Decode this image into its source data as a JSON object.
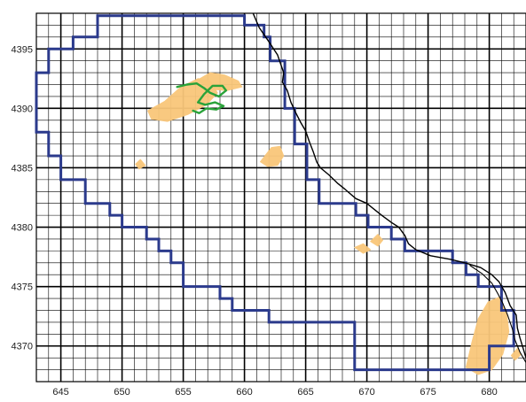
{
  "map": {
    "axes": {
      "x_range": [
        643,
        683
      ],
      "y_range": [
        4367,
        4398
      ],
      "x_tick_values": [
        645,
        650,
        655,
        660,
        665,
        670,
        675,
        680
      ],
      "x_tick_labels": [
        "645",
        "650",
        "655",
        "660",
        "665",
        "670",
        "675",
        "680"
      ],
      "y_tick_values": [
        4370,
        4375,
        4380,
        4385,
        4390,
        4395
      ],
      "y_tick_labels": [
        "4370",
        "4375",
        "4380",
        "4385",
        "4390",
        "4395"
      ],
      "minor_grid_step": 1,
      "major_grid_step": 5,
      "grid": true
    },
    "colors": {
      "background": "#ffffff",
      "grid": "#000000",
      "boundary": "#2b3a8c",
      "coastline": "#000000",
      "patches": "#f9c77a",
      "trail": "#2aa33a"
    },
    "boundary_polygon": [
      [
        648,
        4397.8
      ],
      [
        660,
        4397.8
      ],
      [
        660,
        4397
      ],
      [
        661.6,
        4397
      ],
      [
        661.6,
        4396
      ],
      [
        662.1,
        4396
      ],
      [
        662.1,
        4394
      ],
      [
        663.3,
        4394
      ],
      [
        663.3,
        4390
      ],
      [
        664.1,
        4390
      ],
      [
        664.1,
        4387
      ],
      [
        665.1,
        4387
      ],
      [
        665.1,
        4384
      ],
      [
        666.1,
        4384
      ],
      [
        666.1,
        4382
      ],
      [
        669.1,
        4382
      ],
      [
        669.1,
        4381
      ],
      [
        670.1,
        4381
      ],
      [
        670.1,
        4380
      ],
      [
        672,
        4380
      ],
      [
        672,
        4379
      ],
      [
        673.1,
        4379
      ],
      [
        673.1,
        4378
      ],
      [
        677,
        4378
      ],
      [
        677,
        4377
      ],
      [
        678.1,
        4377
      ],
      [
        678.1,
        4376
      ],
      [
        679.1,
        4376
      ],
      [
        679.1,
        4375
      ],
      [
        681,
        4375
      ],
      [
        681,
        4373
      ],
      [
        682,
        4373
      ],
      [
        682,
        4370
      ],
      [
        680,
        4370
      ],
      [
        680,
        4368
      ],
      [
        669,
        4368
      ],
      [
        669,
        4372
      ],
      [
        662,
        4372
      ],
      [
        662,
        4373
      ],
      [
        659,
        4373
      ],
      [
        659,
        4374
      ],
      [
        658,
        4374
      ],
      [
        658,
        4375
      ],
      [
        655,
        4375
      ],
      [
        655,
        4377
      ],
      [
        654,
        4377
      ],
      [
        654,
        4378
      ],
      [
        653,
        4378
      ],
      [
        653,
        4379
      ],
      [
        652,
        4379
      ],
      [
        652,
        4380
      ],
      [
        650,
        4380
      ],
      [
        650,
        4381
      ],
      [
        649,
        4381
      ],
      [
        649,
        4382
      ],
      [
        647,
        4382
      ],
      [
        647,
        4384
      ],
      [
        645,
        4384
      ],
      [
        645,
        4386
      ],
      [
        644,
        4386
      ],
      [
        644,
        4388
      ],
      [
        643,
        4388
      ],
      [
        643,
        4393
      ],
      [
        644,
        4393
      ],
      [
        644,
        4395
      ],
      [
        646,
        4395
      ],
      [
        646,
        4396
      ],
      [
        648,
        4396
      ]
    ],
    "coastline": [
      [
        660.7,
        4398
      ],
      [
        661.2,
        4396.8
      ],
      [
        662,
        4395.6
      ],
      [
        662.7,
        4394.5
      ],
      [
        663.2,
        4393
      ],
      [
        663.1,
        4392.2
      ],
      [
        663.5,
        4391.5
      ],
      [
        663.8,
        4390.5
      ],
      [
        664.2,
        4389.6
      ],
      [
        664.6,
        4388.8
      ],
      [
        665,
        4388.1
      ],
      [
        665.3,
        4387.2
      ],
      [
        665.6,
        4386.4
      ],
      [
        665.9,
        4385.5
      ],
      [
        666.2,
        4385
      ],
      [
        666.9,
        4384.4
      ],
      [
        667.6,
        4383.7
      ],
      [
        668.2,
        4383.2
      ],
      [
        669.1,
        4382.4
      ],
      [
        670,
        4382
      ],
      [
        670.6,
        4381.5
      ],
      [
        671.2,
        4381
      ],
      [
        672,
        4380.4
      ],
      [
        672.6,
        4380
      ],
      [
        673.1,
        4379.3
      ],
      [
        673.4,
        4378.6
      ],
      [
        674,
        4378.1
      ],
      [
        675.2,
        4377.6
      ],
      [
        676.8,
        4377.3
      ],
      [
        678,
        4377
      ],
      [
        679.3,
        4376.6
      ],
      [
        680.2,
        4376
      ],
      [
        680.8,
        4375.4
      ],
      [
        681.3,
        4374.5
      ],
      [
        681.7,
        4373.4
      ],
      [
        682.2,
        4372.6
      ],
      [
        682.3,
        4371.5
      ],
      [
        682.5,
        4370.7
      ],
      [
        682.8,
        4369.7
      ],
      [
        683,
        4369
      ]
    ],
    "coastline_inner": [
      [
        678.4,
        4376.8
      ],
      [
        679.4,
        4376.1
      ],
      [
        680.2,
        4375.3
      ],
      [
        680.7,
        4374.4
      ],
      [
        681.1,
        4373.6
      ],
      [
        681.5,
        4372.6
      ],
      [
        681.9,
        4371.4
      ],
      [
        682.1,
        4370.5
      ],
      [
        682.5,
        4369.5
      ],
      [
        683,
        4368.6
      ]
    ],
    "patches": [
      [
        [
          652.1,
          4389.8
        ],
        [
          653.5,
          4390.6
        ],
        [
          654.8,
          4391.8
        ],
        [
          656.2,
          4392.5
        ],
        [
          657.2,
          4392.3
        ],
        [
          657.8,
          4391.3
        ],
        [
          656.9,
          4390.3
        ],
        [
          655.4,
          4389.5
        ],
        [
          653.7,
          4388.9
        ],
        [
          652.4,
          4389.1
        ]
      ],
      [
        [
          656.2,
          4392.4
        ],
        [
          657.2,
          4393.0
        ],
        [
          658.4,
          4392.8
        ],
        [
          659.5,
          4392.3
        ],
        [
          659.8,
          4391.8
        ],
        [
          658.6,
          4391.5
        ],
        [
          657.3,
          4391.6
        ]
      ],
      [
        [
          661.3,
          4385.5
        ],
        [
          662.2,
          4386.7
        ],
        [
          662.9,
          4386.8
        ],
        [
          663.2,
          4386
        ],
        [
          662.7,
          4385.2
        ],
        [
          661.9,
          4385.1
        ]
      ],
      [
        [
          651.1,
          4385.3
        ],
        [
          651.5,
          4385.7
        ],
        [
          651.9,
          4385.2
        ],
        [
          651.4,
          4384.9
        ]
      ],
      [
        [
          669,
          4378.3
        ],
        [
          669.7,
          4378.6
        ],
        [
          670.3,
          4378.1
        ],
        [
          669.7,
          4377.8
        ]
      ],
      [
        [
          670.3,
          4378.8
        ],
        [
          670.9,
          4379.4
        ],
        [
          671.3,
          4378.9
        ],
        [
          670.9,
          4378.4
        ]
      ],
      [
        [
          678.1,
          4368.2
        ],
        [
          678.6,
          4370.4
        ],
        [
          679.1,
          4372.3
        ],
        [
          679.9,
          4373.7
        ],
        [
          680.8,
          4374.1
        ],
        [
          681.4,
          4372.9
        ],
        [
          681.6,
          4371.2
        ],
        [
          681.1,
          4369.3
        ],
        [
          680.2,
          4368
        ],
        [
          679.1,
          4367.6
        ]
      ],
      [
        [
          681.8,
          4369.2
        ],
        [
          682.3,
          4369.8
        ],
        [
          682.6,
          4369.3
        ],
        [
          682.1,
          4368.8
        ]
      ]
    ],
    "trail": [
      [
        654.5,
        4391.8
      ],
      [
        655.3,
        4392.0
      ],
      [
        656.1,
        4392.1
      ],
      [
        656.7,
        4391.7
      ],
      [
        657.2,
        4391.3
      ],
      [
        657.9,
        4391.0
      ],
      [
        658.5,
        4391.5
      ],
      [
        658.2,
        4391.9
      ],
      [
        657.4,
        4391.9
      ],
      [
        656.7,
        4391.2
      ],
      [
        656.2,
        4390.5
      ],
      [
        656.8,
        4390.3
      ],
      [
        657.6,
        4390.5
      ],
      [
        658.3,
        4390.2
      ],
      [
        657.7,
        4389.9
      ],
      [
        656.9,
        4390.0
      ],
      [
        656.3,
        4389.6
      ],
      [
        655.8,
        4389.8
      ]
    ]
  }
}
